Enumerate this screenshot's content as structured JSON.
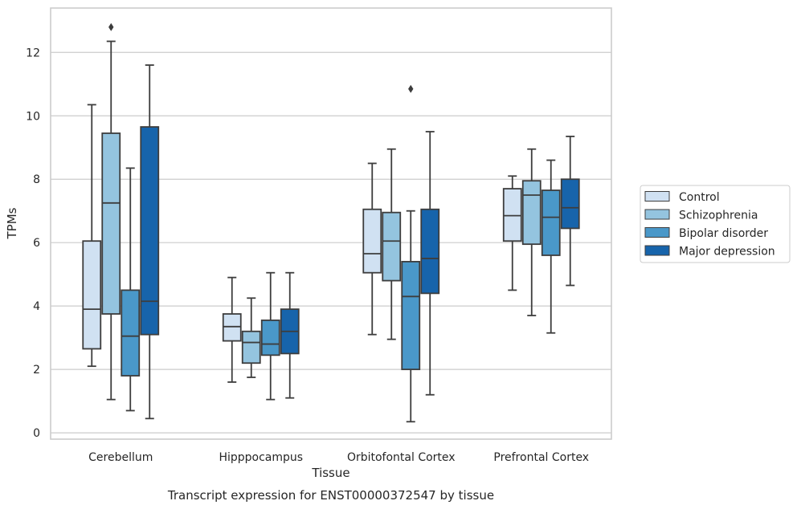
{
  "chart_data": {
    "type": "box",
    "caption": "Transcript expression for ENST00000372547 by tissue",
    "xlabel": "Tissue",
    "ylabel": "TPMs",
    "ylim": [
      -0.2,
      13.4
    ],
    "yticks": [
      0,
      2,
      4,
      6,
      8,
      10,
      12
    ],
    "grid": "horizontal",
    "legend_position": "right",
    "categories": [
      "Cerebellum",
      "Hipppocampus",
      "Orbitofontal Cortex",
      "Prefrontal Cortex"
    ],
    "series": [
      {
        "name": "Control",
        "color": "#d0e1f2",
        "boxes": [
          {
            "whislo": 2.1,
            "q1": 2.65,
            "med": 3.9,
            "q3": 6.05,
            "whishi": 10.35,
            "fliers": []
          },
          {
            "whislo": 1.6,
            "q1": 2.9,
            "med": 3.35,
            "q3": 3.75,
            "whishi": 4.9,
            "fliers": []
          },
          {
            "whislo": 3.1,
            "q1": 5.05,
            "med": 5.65,
            "q3": 7.05,
            "whishi": 8.5,
            "fliers": []
          },
          {
            "whislo": 4.5,
            "q1": 6.05,
            "med": 6.85,
            "q3": 7.7,
            "whishi": 8.1,
            "fliers": []
          }
        ]
      },
      {
        "name": "Schizophrenia",
        "color": "#94c4df",
        "boxes": [
          {
            "whislo": 1.05,
            "q1": 3.75,
            "med": 7.25,
            "q3": 9.45,
            "whishi": 12.35,
            "fliers": [
              12.8
            ]
          },
          {
            "whislo": 1.75,
            "q1": 2.2,
            "med": 2.85,
            "q3": 3.2,
            "whishi": 4.25,
            "fliers": []
          },
          {
            "whislo": 2.95,
            "q1": 4.8,
            "med": 6.05,
            "q3": 6.95,
            "whishi": 8.95,
            "fliers": []
          },
          {
            "whislo": 3.7,
            "q1": 5.95,
            "med": 7.5,
            "q3": 7.95,
            "whishi": 8.95,
            "fliers": []
          }
        ]
      },
      {
        "name": "Bipolar disorder",
        "color": "#4a98c9",
        "boxes": [
          {
            "whislo": 0.7,
            "q1": 1.8,
            "med": 3.05,
            "q3": 4.5,
            "whishi": 8.35,
            "fliers": []
          },
          {
            "whislo": 1.05,
            "q1": 2.45,
            "med": 2.8,
            "q3": 3.55,
            "whishi": 5.05,
            "fliers": []
          },
          {
            "whislo": 0.35,
            "q1": 2.0,
            "med": 4.3,
            "q3": 5.4,
            "whishi": 7.0,
            "fliers": [
              10.85
            ]
          },
          {
            "whislo": 3.15,
            "q1": 5.6,
            "med": 6.8,
            "q3": 7.65,
            "whishi": 8.6,
            "fliers": []
          }
        ]
      },
      {
        "name": "Major depression",
        "color": "#1764ab",
        "boxes": [
          {
            "whislo": 0.45,
            "q1": 3.1,
            "med": 4.15,
            "q3": 9.65,
            "whishi": 11.6,
            "fliers": []
          },
          {
            "whislo": 1.1,
            "q1": 2.5,
            "med": 3.2,
            "q3": 3.9,
            "whishi": 5.05,
            "fliers": []
          },
          {
            "whislo": 1.2,
            "q1": 4.4,
            "med": 5.5,
            "q3": 7.05,
            "whishi": 9.5,
            "fliers": []
          },
          {
            "whislo": 4.65,
            "q1": 6.45,
            "med": 7.1,
            "q3": 8.0,
            "whishi": 9.35,
            "fliers": []
          }
        ]
      }
    ]
  }
}
